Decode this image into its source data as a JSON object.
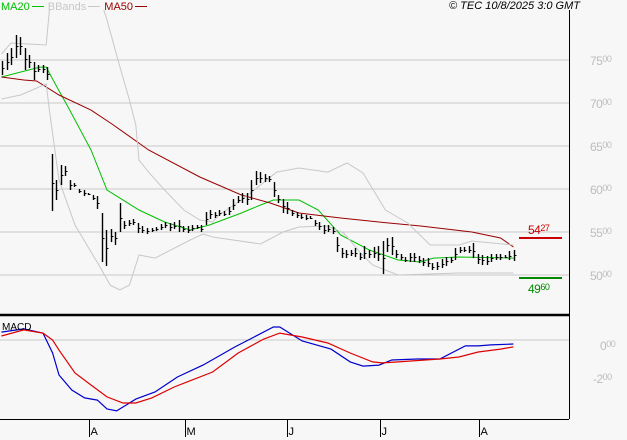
{
  "header": {
    "legend": [
      {
        "label": "MA20",
        "color": "#00c000"
      },
      {
        "label": "BBands",
        "color": "#c8c8c8"
      },
      {
        "label": "MA50",
        "color": "#990000"
      }
    ],
    "copyright": "© TEC 10/8/2025 3:0 GMT"
  },
  "chart_data": [
    {
      "type": "ohlc",
      "title": "",
      "y_ticks": [
        "75.00",
        "70.00",
        "65.00",
        "60.00",
        "55.00",
        "50.00"
      ],
      "y_tick_values": [
        75,
        70,
        65,
        60,
        55,
        50
      ],
      "x_ticks": [
        {
          "label": "A",
          "date": "2025-04-01"
        },
        {
          "label": "M",
          "date": "2025-05-01"
        },
        {
          "label": "J",
          "date": "2025-06-02"
        },
        {
          "label": "J",
          "date": "2025-07-01"
        },
        {
          "label": "A",
          "date": "2025-08-01"
        }
      ],
      "grid": true,
      "bars_high_low": [
        [
          74.88,
          73.25
        ],
        [
          75.81,
          73.84
        ],
        [
          76.39,
          74.42
        ],
        [
          77.91,
          75.23
        ],
        [
          77.67,
          75.58
        ],
        [
          76.39,
          73.84
        ],
        [
          75.58,
          74.07
        ],
        [
          74.77,
          72.67
        ],
        [
          74.42,
          73.6
        ],
        [
          74.42,
          73.49
        ],
        [
          74.18,
          72.67
        ],
        [
          64.07,
          57.44
        ],
        [
          61.04,
          58.72
        ],
        [
          62.79,
          60.46
        ],
        [
          62.67,
          61.51
        ],
        [
          61.04,
          59.88
        ],
        [
          60.69,
          60.23
        ],
        [
          60.0,
          59.53
        ],
        [
          59.88,
          59.18
        ],
        [
          59.53,
          59.3
        ],
        [
          59.3,
          58.72
        ],
        [
          59.18,
          57.67
        ],
        [
          57.21,
          51.51
        ],
        [
          55.23,
          51.05
        ],
        [
          55.35,
          53.83
        ],
        [
          55.0,
          53.49
        ],
        [
          58.37,
          55.0
        ],
        [
          56.28,
          55.35
        ],
        [
          56.39,
          55.7
        ],
        [
          56.51,
          55.81
        ],
        [
          56.05,
          54.88
        ],
        [
          55.7,
          54.88
        ],
        [
          55.46,
          54.76
        ],
        [
          55.46,
          55.0
        ],
        [
          55.58,
          55.11
        ],
        [
          55.93,
          55.23
        ],
        [
          56.16,
          55.46
        ],
        [
          56.05,
          55.11
        ],
        [
          56.16,
          55.35
        ],
        [
          56.39,
          55.0
        ],
        [
          55.7,
          55.0
        ],
        [
          55.7,
          54.88
        ],
        [
          55.81,
          55.11
        ],
        [
          55.81,
          55.35
        ],
        [
          55.81,
          55.0
        ],
        [
          57.32,
          55.81
        ],
        [
          57.56,
          56.51
        ],
        [
          57.32,
          56.63
        ],
        [
          57.56,
          56.86
        ],
        [
          57.44,
          56.86
        ],
        [
          57.91,
          56.98
        ],
        [
          58.83,
          57.56
        ],
        [
          59.18,
          58.37
        ],
        [
          59.53,
          58.37
        ],
        [
          59.53,
          58.14
        ],
        [
          61.04,
          58.72
        ],
        [
          62.09,
          60.46
        ],
        [
          61.97,
          60.69
        ],
        [
          61.74,
          60.81
        ],
        [
          61.51,
          60.81
        ],
        [
          60.81,
          59.07
        ],
        [
          59.3,
          58.37
        ],
        [
          58.83,
          57.21
        ],
        [
          58.49,
          57.09
        ],
        [
          57.56,
          56.86
        ],
        [
          57.32,
          56.63
        ],
        [
          57.09,
          56.51
        ],
        [
          56.98,
          56.39
        ],
        [
          56.86,
          56.51
        ],
        [
          56.39,
          55.7
        ],
        [
          56.16,
          55.23
        ],
        [
          55.81,
          54.76
        ],
        [
          55.81,
          55.0
        ],
        [
          55.58,
          54.76
        ],
        [
          54.42,
          52.67
        ],
        [
          53.14,
          51.97
        ],
        [
          52.91,
          51.97
        ],
        [
          52.91,
          52.21
        ],
        [
          53.14,
          52.09
        ],
        [
          52.56,
          51.74
        ],
        [
          53.37,
          51.86
        ],
        [
          52.91,
          51.97
        ],
        [
          53.26,
          51.97
        ],
        [
          53.37,
          51.63
        ],
        [
          53.95,
          50.11
        ],
        [
          54.3,
          52.67
        ],
        [
          54.42,
          52.32
        ],
        [
          52.91,
          51.97
        ],
        [
          52.44,
          51.74
        ],
        [
          52.09,
          51.51
        ],
        [
          52.56,
          51.51
        ],
        [
          52.56,
          51.51
        ],
        [
          52.21,
          51.39
        ],
        [
          51.97,
          51.05
        ],
        [
          51.97,
          50.93
        ],
        [
          51.39,
          50.58
        ],
        [
          51.51,
          50.58
        ],
        [
          51.86,
          50.81
        ],
        [
          52.09,
          51.05
        ],
        [
          52.09,
          51.39
        ],
        [
          53.14,
          51.74
        ],
        [
          53.26,
          52.56
        ],
        [
          53.26,
          52.67
        ],
        [
          53.37,
          52.56
        ],
        [
          53.72,
          51.97
        ],
        [
          52.44,
          51.28
        ],
        [
          52.32,
          51.16
        ],
        [
          52.21,
          51.16
        ],
        [
          52.44,
          51.51
        ],
        [
          52.44,
          51.74
        ],
        [
          52.44,
          51.74
        ],
        [
          52.32,
          51.97
        ],
        [
          52.79,
          51.74
        ],
        [
          52.91,
          51.63
        ]
      ],
      "series": [
        {
          "name": "MA20",
          "color": "#00c000",
          "points": [
            [
              "2025-03-04",
              73.02
            ],
            [
              "2025-03-16",
              74.18
            ],
            [
              "2025-03-18",
              74.18
            ],
            [
              "2025-03-21",
              72.09
            ],
            [
              "2025-03-25",
              69.42
            ],
            [
              "2025-04-01",
              64.53
            ],
            [
              "2025-04-06",
              59.88
            ],
            [
              "2025-04-16",
              57.56
            ],
            [
              "2025-04-24",
              56.16
            ],
            [
              "2025-05-02",
              55.23
            ],
            [
              "2025-05-08",
              55.81
            ],
            [
              "2025-05-18",
              57.21
            ],
            [
              "2025-05-24",
              58.14
            ],
            [
              "2025-05-28",
              58.72
            ],
            [
              "2025-06-05",
              58.72
            ],
            [
              "2025-06-11",
              57.56
            ],
            [
              "2025-06-18",
              54.65
            ],
            [
              "2025-06-27",
              52.91
            ],
            [
              "2025-07-06",
              51.74
            ],
            [
              "2025-07-13",
              51.51
            ],
            [
              "2025-07-17",
              51.97
            ],
            [
              "2025-07-25",
              52.09
            ],
            [
              "2025-08-11",
              51.97
            ]
          ]
        },
        {
          "name": "MA50",
          "color": "#990000",
          "points": [
            [
              "2025-03-04",
              73.02
            ],
            [
              "2025-03-11",
              72.67
            ],
            [
              "2025-03-15",
              72.56
            ],
            [
              "2025-03-22",
              70.93
            ],
            [
              "2025-04-01",
              69.18
            ],
            [
              "2025-04-08",
              67.44
            ],
            [
              "2025-04-19",
              64.53
            ],
            [
              "2025-05-05",
              61.39
            ],
            [
              "2025-05-18",
              59.3
            ],
            [
              "2025-05-27",
              58.37
            ],
            [
              "2025-06-05",
              57.21
            ],
            [
              "2025-06-18",
              56.63
            ],
            [
              "2025-06-30",
              56.16
            ],
            [
              "2025-07-13",
              55.7
            ],
            [
              "2025-07-29",
              55.0
            ],
            [
              "2025-08-07",
              54.3
            ],
            [
              "2025-08-11",
              53.26
            ]
          ]
        },
        {
          "name": "BBands",
          "color": "#c8c8c8",
          "points": [
            [
              "2025-03-04",
              75.7
            ],
            [
              "2025-03-07",
              76.98
            ],
            [
              "2025-03-18",
              76.74
            ],
            [
              "2025-03-19",
              80.81
            ],
            [
              "2025-03-21",
              81.98
            ],
            [
              "2025-04-04",
              81.98
            ],
            [
              "2025-04-06",
              79.65
            ],
            [
              "2025-04-09",
              75.58
            ],
            [
              "2025-04-13",
              70.35
            ],
            [
              "2025-04-15",
              67.44
            ],
            [
              "2025-04-16",
              63.37
            ],
            [
              "2025-04-19",
              61.97
            ],
            [
              "2025-04-24",
              59.88
            ],
            [
              "2025-04-30",
              57.56
            ],
            [
              "2025-05-05",
              56.39
            ],
            [
              "2025-05-09",
              56.16
            ],
            [
              "2025-05-11",
              56.98
            ],
            [
              "2025-05-18",
              58.72
            ],
            [
              "2025-05-24",
              60.46
            ],
            [
              "2025-05-29",
              61.97
            ],
            [
              "2025-06-05",
              62.44
            ],
            [
              "2025-06-14",
              61.97
            ],
            [
              "2025-06-20",
              63.02
            ],
            [
              "2025-06-25",
              61.86
            ],
            [
              "2025-07-02",
              57.56
            ],
            [
              "2025-07-09",
              56.04
            ],
            [
              "2025-07-16",
              53.49
            ],
            [
              "2025-07-25",
              53.49
            ],
            [
              "2025-07-29",
              53.95
            ],
            [
              "2025-08-11",
              53.49
            ]
          ]
        },
        {
          "name": "BBands",
          "color": "#c8c8c8",
          "points": [
            [
              "2025-03-04",
              70.46
            ],
            [
              "2025-03-10",
              70.93
            ],
            [
              "2025-03-18",
              72.21
            ],
            [
              "2025-03-19",
              69.18
            ],
            [
              "2025-03-22",
              61.04
            ],
            [
              "2025-03-27",
              55.81
            ],
            [
              "2025-04-04",
              50.81
            ],
            [
              "2025-04-07",
              48.83
            ],
            [
              "2025-04-10",
              48.25
            ],
            [
              "2025-04-13",
              48.83
            ],
            [
              "2025-04-16",
              52.32
            ],
            [
              "2025-04-21",
              51.97
            ],
            [
              "2025-05-02",
              54.07
            ],
            [
              "2025-05-06",
              54.77
            ],
            [
              "2025-05-09",
              54.42
            ],
            [
              "2025-05-24",
              53.6
            ],
            [
              "2025-05-31",
              55.0
            ],
            [
              "2025-06-05",
              55.58
            ],
            [
              "2025-06-14",
              55.7
            ],
            [
              "2025-06-19",
              54.88
            ],
            [
              "2025-06-24",
              52.67
            ],
            [
              "2025-06-28",
              51.16
            ],
            [
              "2025-07-06",
              50.0
            ],
            [
              "2025-07-25",
              50.23
            ],
            [
              "2025-08-11",
              50.23
            ]
          ]
        }
      ],
      "markers": [
        {
          "label": "54.27",
          "value": 54.27,
          "color": "#cc0000"
        },
        {
          "label": "49.60",
          "value": 49.6,
          "color": "#008800"
        }
      ]
    },
    {
      "type": "line",
      "title": "MACD",
      "y_ticks": [
        "0.00",
        "-2.00"
      ],
      "y_tick_values": [
        0,
        -2
      ],
      "grid": true,
      "series": [
        {
          "color": "#0000cc",
          "points": [
            [
              "2025-03-04",
              0.48
            ],
            [
              "2025-03-11",
              0.67
            ],
            [
              "2025-03-17",
              0.42
            ],
            [
              "2025-03-20",
              -0.79
            ],
            [
              "2025-03-22",
              -2.12
            ],
            [
              "2025-03-26",
              -3.03
            ],
            [
              "2025-03-30",
              -3.51
            ],
            [
              "2025-04-03",
              -3.64
            ],
            [
              "2025-04-06",
              -4.18
            ],
            [
              "2025-04-09",
              -4.3
            ],
            [
              "2025-04-15",
              -3.58
            ],
            [
              "2025-04-21",
              -3.15
            ],
            [
              "2025-04-28",
              -2.24
            ],
            [
              "2025-05-06",
              -1.52
            ],
            [
              "2025-05-16",
              -0.42
            ],
            [
              "2025-05-22",
              0.18
            ],
            [
              "2025-05-28",
              0.79
            ],
            [
              "2025-05-30",
              0.79
            ],
            [
              "2025-06-06",
              -0.06
            ],
            [
              "2025-06-15",
              -0.55
            ],
            [
              "2025-06-21",
              -1.33
            ],
            [
              "2025-06-25",
              -1.58
            ],
            [
              "2025-06-30",
              -1.52
            ],
            [
              "2025-07-04",
              -1.21
            ],
            [
              "2025-07-12",
              -1.15
            ],
            [
              "2025-07-19",
              -1.15
            ],
            [
              "2025-07-27",
              -0.36
            ],
            [
              "2025-07-31",
              -0.36
            ],
            [
              "2025-08-04",
              -0.3
            ],
            [
              "2025-08-11",
              -0.24
            ]
          ]
        },
        {
          "color": "#dd0000",
          "points": [
            [
              "2025-03-04",
              0.24
            ],
            [
              "2025-03-11",
              0.61
            ],
            [
              "2025-03-17",
              0.42
            ],
            [
              "2025-03-20",
              0.0
            ],
            [
              "2025-03-22",
              -0.61
            ],
            [
              "2025-03-27",
              -2.0
            ],
            [
              "2025-04-01",
              -2.73
            ],
            [
              "2025-04-06",
              -3.45
            ],
            [
              "2025-04-11",
              -3.82
            ],
            [
              "2025-04-15",
              -3.82
            ],
            [
              "2025-04-20",
              -3.51
            ],
            [
              "2025-04-27",
              -2.85
            ],
            [
              "2025-05-09",
              -1.94
            ],
            [
              "2025-05-17",
              -0.79
            ],
            [
              "2025-05-25",
              0.06
            ],
            [
              "2025-05-30",
              0.42
            ],
            [
              "2025-06-06",
              0.18
            ],
            [
              "2025-06-14",
              -0.18
            ],
            [
              "2025-06-21",
              -0.79
            ],
            [
              "2025-06-28",
              -1.33
            ],
            [
              "2025-07-01",
              -1.39
            ],
            [
              "2025-07-06",
              -1.33
            ],
            [
              "2025-07-19",
              -1.15
            ],
            [
              "2025-07-25",
              -1.03
            ],
            [
              "2025-07-31",
              -0.73
            ],
            [
              "2025-08-07",
              -0.55
            ],
            [
              "2025-08-11",
              -0.42
            ]
          ]
        }
      ]
    }
  ]
}
